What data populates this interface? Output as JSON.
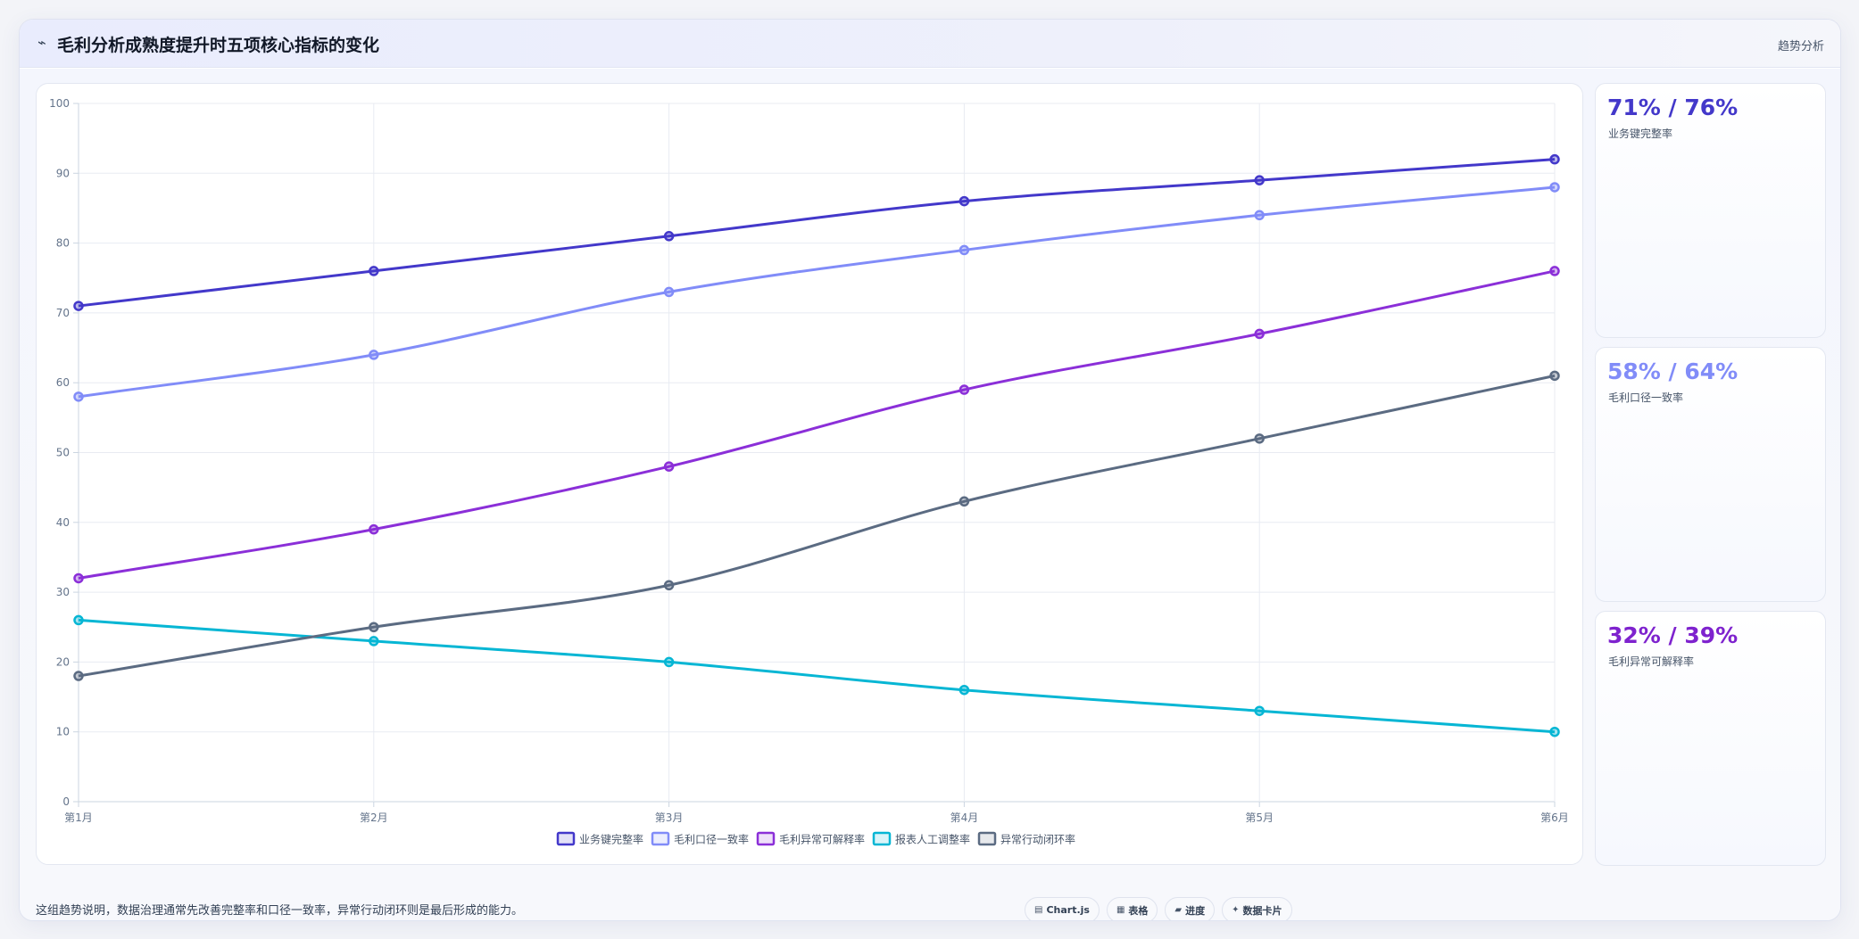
{
  "header": {
    "icon": "trend-line-icon",
    "title": "毛利分析成熟度提升时五项核心指标的变化",
    "right_label": "趋势分析"
  },
  "chart_data": {
    "type": "line",
    "title": "",
    "xlabel": "",
    "ylabel": "",
    "ylim": [
      0,
      100
    ],
    "yticks": [
      0,
      10,
      20,
      30,
      40,
      50,
      60,
      70,
      80,
      90,
      100
    ],
    "categories": [
      "第1月",
      "第2月",
      "第3月",
      "第4月",
      "第5月",
      "第6月"
    ],
    "grid": true,
    "legend_position": "bottom-center",
    "series": [
      {
        "name": "业务键完整率",
        "color": "#4338ca",
        "values": [
          71,
          76,
          81,
          86,
          89,
          92
        ]
      },
      {
        "name": "毛利口径一致率",
        "color": "#818cf8",
        "values": [
          58,
          64,
          73,
          79,
          84,
          88
        ]
      },
      {
        "name": "毛利异常可解释率",
        "color": "#8b2fd8",
        "values": [
          32,
          39,
          48,
          59,
          67,
          76
        ]
      },
      {
        "name": "报表人工调整率",
        "color": "#06b6d4",
        "values": [
          26,
          23,
          20,
          16,
          13,
          10
        ]
      },
      {
        "name": "异常行动闭环率",
        "color": "#5b6b82",
        "values": [
          18,
          25,
          31,
          43,
          52,
          61
        ]
      }
    ]
  },
  "side_cards": [
    {
      "value": "71% / 76%",
      "label": "业务键完整率",
      "color": "#4338ca"
    },
    {
      "value": "58% / 64%",
      "label": "毛利口径一致率",
      "color": "#818cf8"
    },
    {
      "value": "32% / 39%",
      "label": "毛利异常可解释率",
      "color": "#7e22ce"
    }
  ],
  "footer": {
    "note": "这组趋势说明，数据治理通常先改善完整率和口径一致率，异常行动闭环则是最后形成的能力。",
    "pills": [
      {
        "icon": "chart-icon",
        "glyph": "▤",
        "label": "Chart.js"
      },
      {
        "icon": "table-icon",
        "glyph": "▦",
        "label": "表格"
      },
      {
        "icon": "progress-icon",
        "glyph": "▰",
        "label": "进度"
      },
      {
        "icon": "sparkle-icon",
        "glyph": "✦",
        "label": "数据卡片"
      }
    ]
  }
}
